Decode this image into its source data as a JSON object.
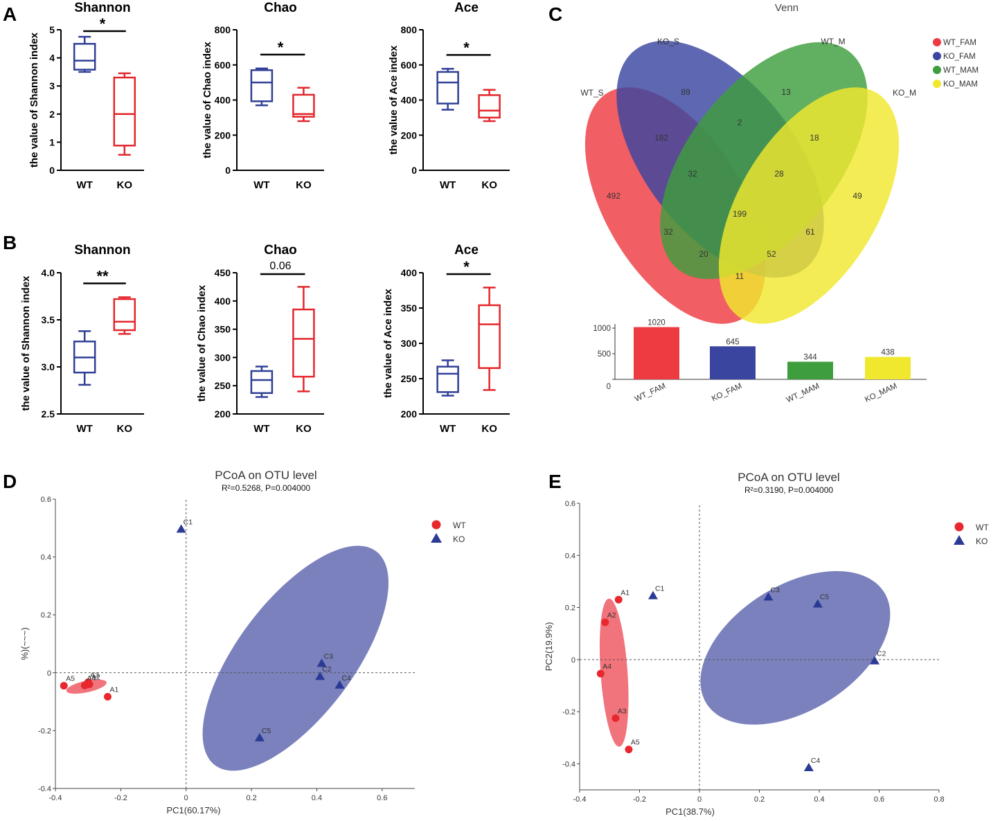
{
  "panel_labels": {
    "a": "A",
    "b": "B",
    "c": "C",
    "d": "D",
    "e": "E"
  },
  "colors": {
    "wt_box": "#2f3f95",
    "ko_box": "#e3262b",
    "wt_point": "#e8282e",
    "ko_point": "#2b3a94",
    "wt_ellipse": "#ee5a64",
    "ko_ellipse": "#4e57a6",
    "venn_wt_fam": "#ee3b42",
    "venn_ko_fam": "#3a45a0",
    "venn_wt_mam": "#3e9e3d",
    "venn_ko_mam": "#f0e82e",
    "axis": "#000000",
    "dash": "#555555"
  },
  "chart_data": [
    {
      "id": "A_shannon",
      "type": "box",
      "title": "Shannon",
      "ylabel": "the value of Shannon index",
      "ylim": [
        0,
        5
      ],
      "yticks": [
        0,
        1,
        2,
        3,
        4,
        5
      ],
      "ytick_labels": [
        "0",
        "1",
        "2",
        "3",
        "4",
        "5"
      ],
      "categories": [
        "WT",
        "KO"
      ],
      "boxes": [
        {
          "min": 3.5,
          "q1": 3.58,
          "median": 3.9,
          "q3": 4.5,
          "max": 4.75
        },
        {
          "min": 0.55,
          "q1": 0.88,
          "median": 2.0,
          "q3": 3.3,
          "max": 3.45
        }
      ],
      "sig": "*"
    },
    {
      "id": "A_chao",
      "type": "box",
      "title": "Chao",
      "ylabel": "the value of Chao index",
      "ylim": [
        0,
        800
      ],
      "yticks": [
        0,
        200,
        400,
        600,
        800
      ],
      "ytick_labels": [
        "0",
        "200",
        "400",
        "600",
        "800"
      ],
      "categories": [
        "WT",
        "KO"
      ],
      "boxes": [
        {
          "min": 370,
          "q1": 393,
          "median": 500,
          "q3": 570,
          "max": 580
        },
        {
          "min": 280,
          "q1": 305,
          "median": 320,
          "q3": 430,
          "max": 470
        }
      ],
      "sig": "*"
    },
    {
      "id": "A_ace",
      "type": "box",
      "title": "Ace",
      "ylabel": "the value of Ace index",
      "ylim": [
        0,
        800
      ],
      "yticks": [
        0,
        200,
        400,
        600,
        800
      ],
      "ytick_labels": [
        "0",
        "200",
        "400",
        "600",
        "800"
      ],
      "categories": [
        "WT",
        "KO"
      ],
      "boxes": [
        {
          "min": 345,
          "q1": 380,
          "median": 500,
          "q3": 560,
          "max": 578
        },
        {
          "min": 280,
          "q1": 300,
          "median": 340,
          "q3": 428,
          "max": 458
        }
      ],
      "sig": "*"
    },
    {
      "id": "B_shannon",
      "type": "box",
      "title": "Shannon",
      "ylabel": "the value of Shannon index",
      "ylim": [
        2.5,
        4.0
      ],
      "yticks": [
        2.5,
        3.0,
        3.5,
        4.0
      ],
      "ytick_labels": [
        "2.5",
        "3.0",
        "3.5",
        "4.0"
      ],
      "categories": [
        "WT",
        "KO"
      ],
      "boxes": [
        {
          "min": 2.81,
          "q1": 2.94,
          "median": 3.1,
          "q3": 3.27,
          "max": 3.38
        },
        {
          "min": 3.35,
          "q1": 3.39,
          "median": 3.48,
          "q3": 3.72,
          "max": 3.74
        }
      ],
      "sig": "**"
    },
    {
      "id": "B_chao",
      "type": "box",
      "title": "Chao",
      "ylabel": "the value of Chao index",
      "ylim": [
        200,
        450
      ],
      "yticks": [
        200,
        250,
        300,
        350,
        400,
        450
      ],
      "ytick_labels": [
        "200",
        "250",
        "300",
        "350",
        "400",
        "450"
      ],
      "categories": [
        "WT",
        "KO"
      ],
      "boxes": [
        {
          "min": 230,
          "q1": 237,
          "median": 260,
          "q3": 276,
          "max": 284
        },
        {
          "min": 240,
          "q1": 266,
          "median": 333,
          "q3": 385,
          "max": 425
        }
      ],
      "sig": "0.06"
    },
    {
      "id": "B_ace",
      "type": "box",
      "title": "Ace",
      "ylabel": "the value of Ace index",
      "ylim": [
        200,
        400
      ],
      "yticks": [
        200,
        250,
        300,
        350,
        400
      ],
      "ytick_labels": [
        "200",
        "250",
        "300",
        "350",
        "400"
      ],
      "categories": [
        "WT",
        "KO"
      ],
      "boxes": [
        {
          "min": 226,
          "q1": 231,
          "median": 257,
          "q3": 267,
          "max": 276
        },
        {
          "min": 234,
          "q1": 265,
          "median": 327,
          "q3": 354,
          "max": 379
        }
      ],
      "sig": "*"
    },
    {
      "id": "C_venn",
      "type": "venn",
      "title": "Venn",
      "set_labels": [
        "WT_S",
        "KO_S",
        "WT_M",
        "KO_M"
      ],
      "legend": [
        "WT_FAM",
        "KO_FAM",
        "WT_MAM",
        "KO_MAM"
      ],
      "region_counts": [
        "492",
        "89",
        "13",
        "49",
        "182",
        "2",
        "18",
        "32",
        "28",
        "199",
        "32",
        "61",
        "20",
        "52",
        "11"
      ],
      "totals": {
        "type": "bar",
        "categories": [
          "WT_FAM",
          "KO_FAM",
          "WT_MAM",
          "KO_MAM"
        ],
        "values": [
          1020,
          645,
          344,
          438
        ],
        "value_labels": [
          "1020",
          "645",
          "344",
          "438"
        ],
        "ylim": [
          0,
          1000
        ],
        "yticks": [
          0,
          500,
          1000
        ],
        "ytick_labels": [
          "0",
          "500",
          "1000"
        ]
      }
    },
    {
      "id": "D_pcoa",
      "type": "scatter",
      "title": "PCoA on OTU level",
      "subtitle": "R²=0.5268, P=0.004000",
      "xlabel": "PC1(60.17%)",
      "ylabel_glyphs": "%)(~~~)",
      "xlim": [
        -0.4,
        0.7
      ],
      "ylim": [
        -0.4,
        0.6
      ],
      "xticks": [
        -0.4,
        -0.2,
        0,
        0.2,
        0.4,
        0.6
      ],
      "xtick_labels": [
        "-0.4",
        "-0.2",
        "0",
        "0.2",
        "0.4",
        "0.6"
      ],
      "yticks": [
        -0.4,
        -0.2,
        0,
        0.2,
        0.4,
        0.6
      ],
      "ytick_labels": [
        "-0.4",
        "-0.2",
        "0",
        "0.2",
        "0.4",
        "0.6"
      ],
      "legend": [
        "WT",
        "KO"
      ],
      "series": [
        {
          "name": "WT",
          "marker": "circle",
          "points": [
            {
              "label": "A1",
              "x": -0.24,
              "y": -0.083
            },
            {
              "label": "A2",
              "x": -0.296,
              "y": -0.04
            },
            {
              "label": "A3",
              "x": -0.3,
              "y": -0.033
            },
            {
              "label": "A4",
              "x": -0.31,
              "y": -0.044
            },
            {
              "label": "A5",
              "x": -0.374,
              "y": -0.045
            }
          ]
        },
        {
          "name": "KO",
          "marker": "triangle",
          "points": [
            {
              "label": "C1",
              "x": -0.015,
              "y": 0.496
            },
            {
              "label": "C2",
              "x": 0.41,
              "y": -0.013
            },
            {
              "label": "C3",
              "x": 0.415,
              "y": 0.032
            },
            {
              "label": "C4",
              "x": 0.47,
              "y": -0.043
            },
            {
              "label": "C5",
              "x": 0.225,
              "y": -0.225
            }
          ]
        }
      ],
      "ellipses": [
        {
          "group": "WT",
          "cx": -0.305,
          "cy": -0.048,
          "rx": 0.063,
          "ry": 0.02,
          "angle": -12
        },
        {
          "group": "KO",
          "cx": 0.335,
          "cy": 0.05,
          "rx": 0.41,
          "ry": 0.2,
          "angle": -53
        }
      ]
    },
    {
      "id": "E_pcoa",
      "type": "scatter",
      "title": "PCoA on OTU level",
      "subtitle": "R²=0.3190, P=0.004000",
      "xlabel": "PC1(38.7%)",
      "ylabel": "PC2(19.9%)",
      "xlim": [
        -0.4,
        0.8
      ],
      "ylim": [
        -0.5,
        0.6
      ],
      "xticks": [
        -0.4,
        -0.2,
        0,
        0.2,
        0.4,
        0.6,
        0.8
      ],
      "xtick_labels": [
        "-0.4",
        "-0.2",
        "0",
        "0.2",
        "0.4",
        "0.6",
        "0.8"
      ],
      "yticks": [
        -0.4,
        -0.2,
        0,
        0.2,
        0.4,
        0.6
      ],
      "ytick_labels": [
        "-0.4",
        "-0.2",
        "0",
        "0.2",
        "0.4",
        "0.6"
      ],
      "legend": [
        "WT",
        "KO"
      ],
      "series": [
        {
          "name": "WT",
          "marker": "circle",
          "points": [
            {
              "label": "A1",
              "x": -0.27,
              "y": 0.23
            },
            {
              "label": "A2",
              "x": -0.315,
              "y": 0.143
            },
            {
              "label": "A3",
              "x": -0.28,
              "y": -0.225
            },
            {
              "label": "A4",
              "x": -0.33,
              "y": -0.054
            },
            {
              "label": "A5",
              "x": -0.236,
              "y": -0.345
            }
          ]
        },
        {
          "name": "KO",
          "marker": "triangle",
          "points": [
            {
              "label": "C1",
              "x": -0.155,
              "y": 0.245
            },
            {
              "label": "C2",
              "x": 0.585,
              "y": -0.005
            },
            {
              "label": "C3",
              "x": 0.23,
              "y": 0.24
            },
            {
              "label": "C4",
              "x": 0.365,
              "y": -0.415
            },
            {
              "label": "C5",
              "x": 0.395,
              "y": 0.213
            }
          ]
        }
      ],
      "ellipses": [
        {
          "group": "WT",
          "cx": -0.285,
          "cy": -0.05,
          "rx": 0.045,
          "ry": 0.285,
          "angle": -4
        },
        {
          "group": "KO",
          "cx": 0.32,
          "cy": 0.045,
          "rx": 0.35,
          "ry": 0.24,
          "angle": -32
        }
      ]
    }
  ]
}
